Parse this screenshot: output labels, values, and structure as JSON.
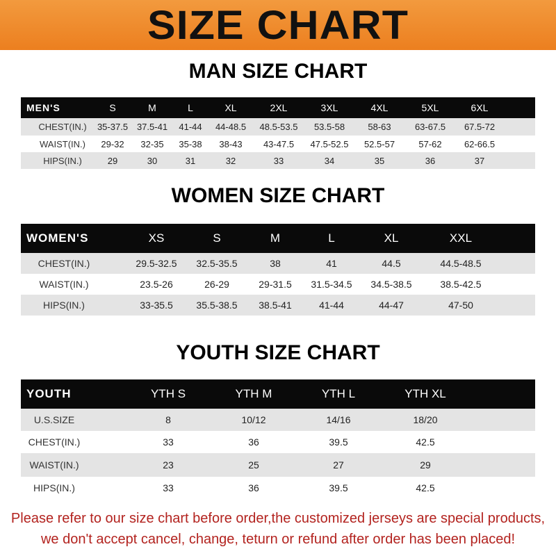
{
  "banner_title": "SIZE CHART",
  "men": {
    "title": "MAN SIZE CHART",
    "header": [
      "MEN'S",
      "S",
      "M",
      "L",
      "XL",
      "2XL",
      "3XL",
      "4XL",
      "5XL",
      "6XL"
    ],
    "rows": [
      [
        "CHEST(IN.)",
        "35-37.5",
        "37.5-41",
        "41-44",
        "44-48.5",
        "48.5-53.5",
        "53.5-58",
        "58-63",
        "63-67.5",
        "67.5-72"
      ],
      [
        "WAIST(IN.)",
        "29-32",
        "32-35",
        "35-38",
        "38-43",
        "43-47.5",
        "47.5-52.5",
        "52.5-57",
        "57-62",
        "62-66.5"
      ],
      [
        "HIPS(IN.)",
        "29",
        "30",
        "31",
        "32",
        "33",
        "34",
        "35",
        "36",
        "37"
      ]
    ]
  },
  "women": {
    "title": "WOMEN SIZE CHART",
    "header": [
      "WOMEN'S",
      "XS",
      "S",
      "M",
      "L",
      "XL",
      "XXL"
    ],
    "rows": [
      [
        "CHEST(IN.)",
        "29.5-32.5",
        "32.5-35.5",
        "38",
        "41",
        "44.5",
        "44.5-48.5"
      ],
      [
        "WAIST(IN.)",
        "23.5-26",
        "26-29",
        "29-31.5",
        "31.5-34.5",
        "34.5-38.5",
        "38.5-42.5"
      ],
      [
        "HIPS(IN.)",
        "33-35.5",
        "35.5-38.5",
        "38.5-41",
        "41-44",
        "44-47",
        "47-50"
      ]
    ]
  },
  "youth": {
    "title": "YOUTH SIZE CHART",
    "header": [
      "YOUTH",
      "YTH S",
      "YTH M",
      "YTH L",
      "YTH XL"
    ],
    "rows": [
      [
        "U.S.SIZE",
        "8",
        "10/12",
        "14/16",
        "18/20"
      ],
      [
        "CHEST(IN.)",
        "33",
        "36",
        "39.5",
        "42.5"
      ],
      [
        "WAIST(IN.)",
        "23",
        "25",
        "27",
        "29"
      ],
      [
        "HIPS(IN.)",
        "33",
        "36",
        "39.5",
        "42.5"
      ]
    ]
  },
  "footer": {
    "line1": "Please refer to our size chart before order,the customized jerseys are special products,",
    "line2": "we don't accept cancel, change, teturn or refund after order has been placed!"
  },
  "colors": {
    "banner": "#ec8a2a",
    "header_row": "#0a0a0a",
    "stripe": "#e4e4e4",
    "footer_text": "#b3231f"
  }
}
